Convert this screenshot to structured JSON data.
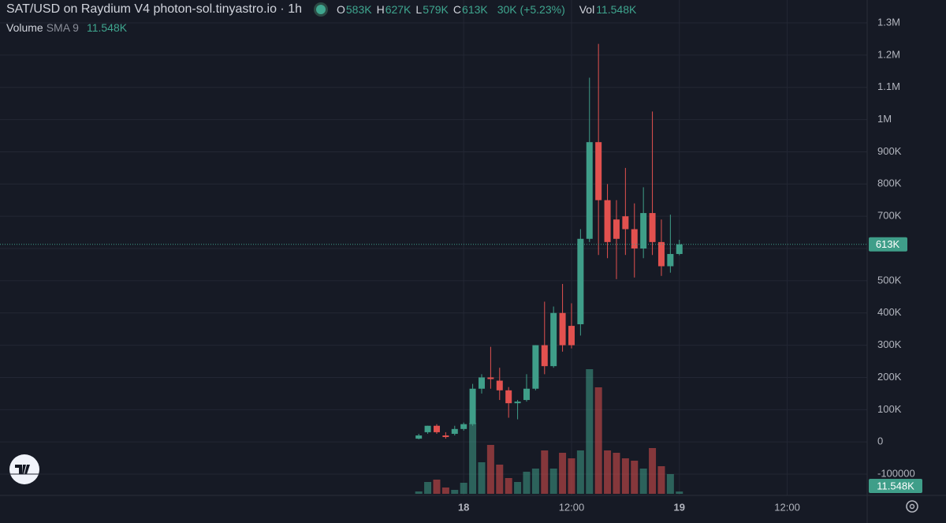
{
  "chart_data": {
    "type": "candlestick",
    "title": "SAT/USD on Raydium V4 photon-sol.tinyastro.io · 1h",
    "ohlc_legend": [
      {
        "key": "O",
        "value": "583K"
      },
      {
        "key": "H",
        "value": "627K"
      },
      {
        "key": "L",
        "value": "579K"
      },
      {
        "key": "C",
        "value": "613K"
      }
    ],
    "change_label": "30K (+5.23%)",
    "volume_key": "Vol",
    "volume_label": "11.548K",
    "indicator": {
      "name": "Volume",
      "params": "SMA 9",
      "value": "11.548K"
    },
    "close_label": "613K",
    "up_color": "#3f9e89",
    "down_color": "#e2514f",
    "x": [
      -5,
      -4,
      -3,
      -2,
      -1,
      0,
      1,
      2,
      3,
      4,
      5,
      6,
      7,
      8,
      9,
      10,
      11,
      12,
      13,
      14,
      15,
      16,
      17,
      18,
      19,
      20,
      21,
      22,
      23,
      24
    ],
    "open": [
      10000,
      30000,
      50000,
      20000,
      25000,
      40000,
      55000,
      165000,
      200000,
      190000,
      160000,
      120000,
      130000,
      165000,
      300000,
      235000,
      400000,
      360000,
      365000,
      630000,
      930000,
      750000,
      690000,
      700000,
      660000,
      600000,
      710000,
      620000,
      545000,
      583000
    ],
    "high": [
      25000,
      50000,
      55000,
      30000,
      50000,
      60000,
      180000,
      210000,
      295000,
      230000,
      170000,
      130000,
      210000,
      300000,
      435000,
      420000,
      490000,
      430000,
      660000,
      1130000,
      1235000,
      800000,
      750000,
      850000,
      740000,
      790000,
      1025000,
      690000,
      705000,
      627000
    ],
    "low": [
      8000,
      25000,
      25000,
      10000,
      20000,
      35000,
      50000,
      150000,
      165000,
      130000,
      75000,
      70000,
      125000,
      160000,
      210000,
      230000,
      280000,
      290000,
      330000,
      620000,
      580000,
      570000,
      505000,
      580000,
      510000,
      570000,
      580000,
      515000,
      525000,
      579000
    ],
    "close": [
      20000,
      50000,
      30000,
      15000,
      40000,
      55000,
      165000,
      200000,
      195000,
      160000,
      120000,
      125000,
      165000,
      300000,
      235000,
      400000,
      300000,
      300000,
      630000,
      930000,
      750000,
      620000,
      630000,
      660000,
      600000,
      710000,
      620000,
      545000,
      583000,
      613000
    ],
    "volume": [
      12000,
      60000,
      72000,
      32000,
      20000,
      56000,
      360000,
      160000,
      248000,
      148000,
      80000,
      60000,
      112000,
      128000,
      220000,
      128000,
      208000,
      180000,
      220000,
      632000,
      540000,
      220000,
      208000,
      180000,
      168000,
      128000,
      232000,
      140000,
      100000,
      11548
    ],
    "xlim": [
      -51.6,
      44.9
    ],
    "xticks": [
      {
        "value": 0,
        "label": "18"
      },
      {
        "value": 12,
        "label": "12:00"
      },
      {
        "value": 24,
        "label": "19"
      },
      {
        "value": 36,
        "label": "12:00"
      }
    ],
    "ylim": [
      -166000,
      1371000
    ],
    "yticks": [
      {
        "value": 1300000,
        "label": "1.3M"
      },
      {
        "value": 1200000,
        "label": "1.2M"
      },
      {
        "value": 1100000,
        "label": "1.1M"
      },
      {
        "value": 1000000,
        "label": "1M"
      },
      {
        "value": 900000,
        "label": "900K"
      },
      {
        "value": 800000,
        "label": "800K"
      },
      {
        "value": 700000,
        "label": "700K"
      },
      {
        "value": 600000,
        "label": "600K"
      },
      {
        "value": 500000,
        "label": "500K"
      },
      {
        "value": 400000,
        "label": "400K"
      },
      {
        "value": 300000,
        "label": "300K"
      },
      {
        "value": 200000,
        "label": "200K"
      },
      {
        "value": 100000,
        "label": "100K"
      },
      0,
      -100000
    ],
    "grid": true
  }
}
